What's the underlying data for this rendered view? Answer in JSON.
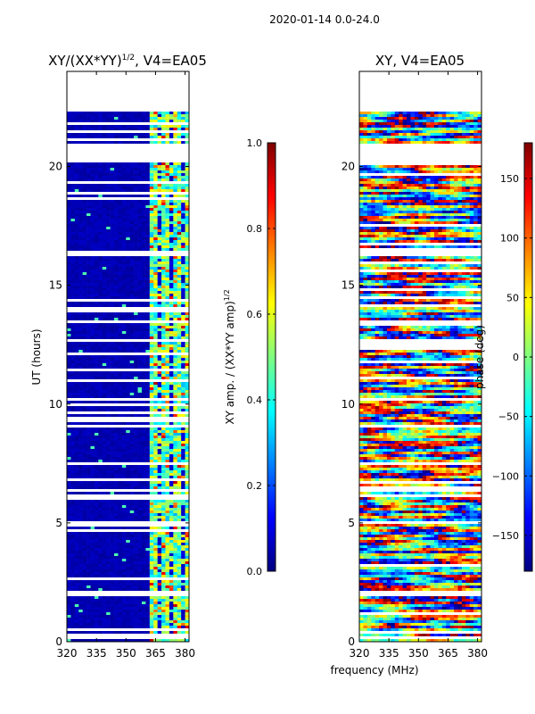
{
  "figure": {
    "suptitle": "2020-01-14 0.0-24.0",
    "shared_xlabel": "frequency (MHz)"
  },
  "chart_data": [
    {
      "type": "heatmap",
      "title": "XY/(XX*YY)",
      "title_exponent": "1/2",
      "title_suffix": ", V4=EA05",
      "xlabel": "",
      "ylabel": "UT (hours)",
      "xlim": [
        320,
        382
      ],
      "ylim": [
        0,
        24
      ],
      "x_ticks": [
        320,
        335,
        350,
        365,
        380
      ],
      "y_ticks": [
        0,
        5,
        10,
        15,
        20
      ],
      "colorscale": "jet",
      "colorbar": {
        "label": "XY amp. / (XX*YY amp)",
        "label_exponent": "1/2",
        "range": [
          0.0,
          1.0
        ],
        "ticks": [
          "0.0",
          "0.2",
          "0.4",
          "0.6",
          "0.8",
          "1.0"
        ]
      },
      "data_gaps_hours": [
        [
          0.1,
          0.3
        ],
        [
          0.5,
          0.6
        ],
        [
          1.9,
          2.1
        ],
        [
          5.0,
          5.1
        ],
        [
          5.95,
          6.15
        ],
        [
          6.3,
          6.4
        ],
        [
          7.4,
          7.5
        ],
        [
          9.0,
          9.1
        ],
        [
          10.1,
          10.2
        ],
        [
          13.4,
          13.5
        ],
        [
          16.2,
          16.4
        ],
        [
          20.15,
          21.0
        ],
        [
          22.3,
          24.0
        ]
      ],
      "notes": "Mostly low amplitude (~0.0-0.1) below 362 MHz; enhanced amplitude (~0.3-0.9) in channels around 363-382 MHz"
    },
    {
      "type": "heatmap",
      "title": "XY, V4=EA05",
      "xlabel": "",
      "ylabel": "",
      "xlim": [
        320,
        382
      ],
      "ylim": [
        0,
        24
      ],
      "x_ticks": [
        320,
        335,
        350,
        365,
        380
      ],
      "y_ticks": [
        0,
        5,
        10,
        15,
        20
      ],
      "colorscale": "jet",
      "colorbar": {
        "label": "phase (deg)",
        "range": [
          -180,
          180
        ],
        "ticks": [
          "−150",
          "−100",
          "−50",
          "0",
          "50",
          "100",
          "150"
        ]
      },
      "data_gaps_hours": [
        [
          0.1,
          0.2
        ],
        [
          1.9,
          2.1
        ],
        [
          5.0,
          5.1
        ],
        [
          6.3,
          6.4
        ],
        [
          13.4,
          13.5
        ],
        [
          16.2,
          16.4
        ],
        [
          20.15,
          21.0
        ],
        [
          22.3,
          24.0
        ]
      ],
      "notes": "Phase values noisy, spanning full -180 to 180 degree range"
    }
  ]
}
